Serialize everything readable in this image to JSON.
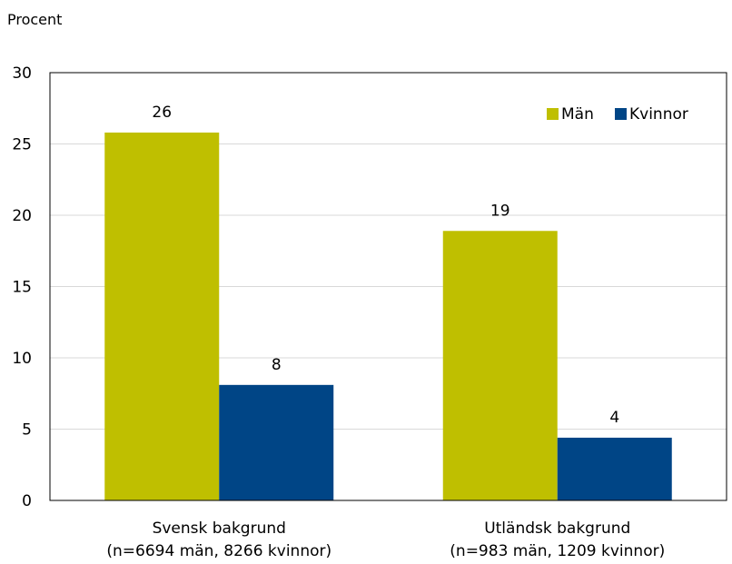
{
  "chart_data": {
    "type": "bar",
    "ylabel": "Procent",
    "ylim": [
      0,
      30
    ],
    "yticks": [
      0,
      5,
      10,
      15,
      20,
      25,
      30
    ],
    "grid": true,
    "legend_position": "top-right",
    "categories": [
      [
        "Svensk bakgrund",
        "(n=6694 män, 8266 kvinnor)"
      ],
      [
        "Utländsk bakgrund",
        "(n=983 män, 1209 kvinnor)"
      ]
    ],
    "series": [
      {
        "name": "Män",
        "color": "#bfbf00",
        "values": [
          25.8,
          18.9
        ],
        "labels": [
          "26",
          "19"
        ]
      },
      {
        "name": "Kvinnor",
        "color": "#004586",
        "values": [
          8.1,
          4.4
        ],
        "labels": [
          "8",
          "4"
        ]
      }
    ]
  }
}
